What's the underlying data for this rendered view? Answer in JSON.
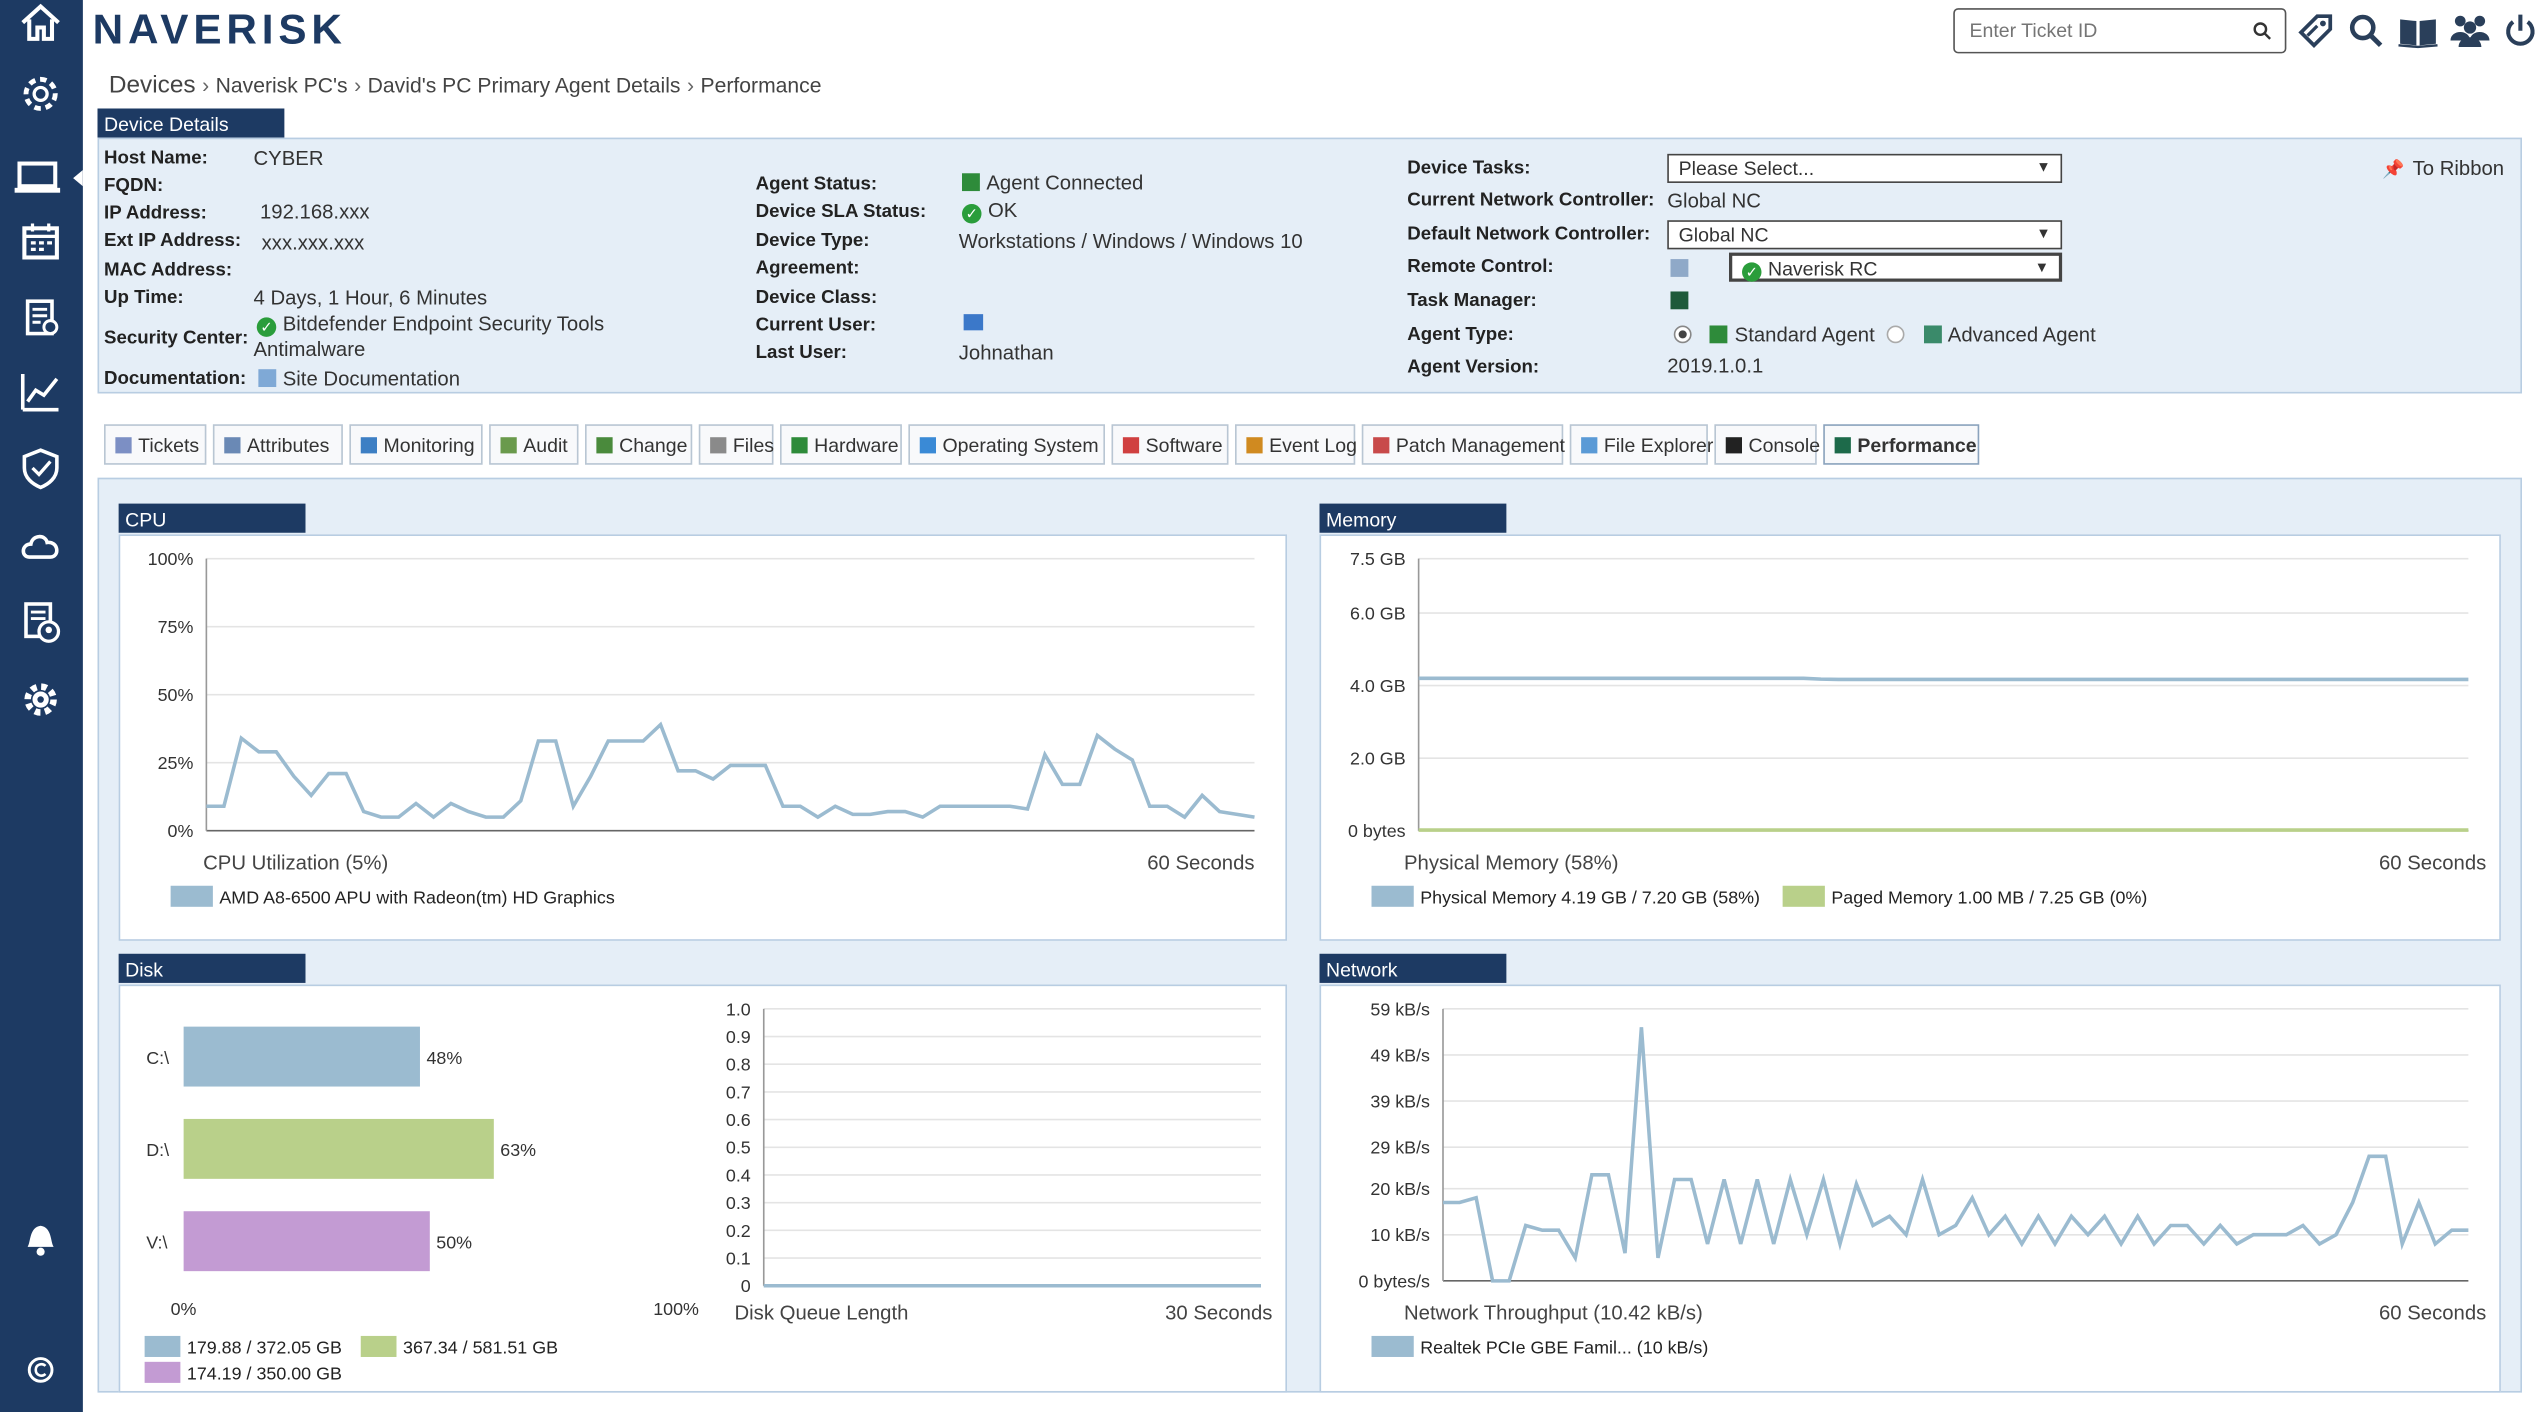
{
  "brand": {
    "logo": "NAVERISK"
  },
  "header": {
    "ticket_placeholder": "Enter Ticket ID"
  },
  "breadcrumb": {
    "root": "Devices",
    "items": [
      "Naverisk PC's",
      "David's PC Primary Agent Details",
      "Performance"
    ]
  },
  "device_details": {
    "title": "Device Details",
    "col1": [
      {
        "label": "Host Name:",
        "value": "CYBER"
      },
      {
        "label": "FQDN:",
        "value": ""
      },
      {
        "label": "IP Address:",
        "value": "192.168.xxx"
      },
      {
        "label": "Ext IP Address:",
        "value": "xxx.xxx.xxx"
      },
      {
        "label": "MAC Address:",
        "value": ""
      },
      {
        "label": "Up Time:",
        "value": "4 Days, 1 Hour, 6 Minutes"
      },
      {
        "label": "Security Center:",
        "value": "Bitdefender Endpoint Security Tools",
        "value2": "Antimalware"
      },
      {
        "label": "Documentation:",
        "value": "Site Documentation"
      }
    ],
    "col2": [
      {
        "label": "Agent Status:",
        "value": "Agent Connected"
      },
      {
        "label": "Device SLA Status:",
        "value": "OK"
      },
      {
        "label": "Device Type:",
        "value": "Workstations / Windows / Windows 10"
      },
      {
        "label": "Agreement:",
        "value": ""
      },
      {
        "label": "Device Class:",
        "value": ""
      },
      {
        "label": "Current User:",
        "value": ""
      },
      {
        "label": "Last User:",
        "value": "Johnathan"
      }
    ],
    "col3": {
      "device_tasks_label": "Device Tasks:",
      "device_tasks_value": "Please Select...",
      "current_nc_label": "Current Network Controller:",
      "current_nc_value": "Global NC",
      "default_nc_label": "Default Network Controller:",
      "default_nc_value": "Global NC",
      "remote_control_label": "Remote Control:",
      "remote_control_value": "Naverisk RC",
      "task_manager_label": "Task Manager:",
      "agent_type_label": "Agent Type:",
      "agent_type_standard": "Standard Agent",
      "agent_type_advanced": "Advanced Agent",
      "agent_version_label": "Agent Version:",
      "agent_version_value": "2019.1.0.1"
    },
    "to_ribbon": "To Ribbon"
  },
  "tabs": [
    {
      "label": "Tickets",
      "color": "#7c8fc4"
    },
    {
      "label": "Attributes",
      "color": "#6a89b5"
    },
    {
      "label": "Monitoring",
      "color": "#3d7fc4"
    },
    {
      "label": "Audit",
      "color": "#6a9a4c"
    },
    {
      "label": "Change",
      "color": "#4a8a3c"
    },
    {
      "label": "Files",
      "color": "#8a8a8a"
    },
    {
      "label": "Hardware",
      "color": "#2e8b3a"
    },
    {
      "label": "Operating System",
      "color": "#3a8ad6"
    },
    {
      "label": "Software",
      "color": "#d04040"
    },
    {
      "label": "Event Log",
      "color": "#d08a20"
    },
    {
      "label": "Patch Management",
      "color": "#c84a4a"
    },
    {
      "label": "File Explorer",
      "color": "#5a9ad6"
    },
    {
      "label": "Console",
      "color": "#222222"
    },
    {
      "label": "Performance",
      "color": "#1d6a4a"
    }
  ],
  "panels": {
    "cpu": "CPU",
    "memory": "Memory",
    "disk": "Disk",
    "network": "Network"
  },
  "chart_data": [
    {
      "type": "line",
      "name": "cpu",
      "ylim": [
        0,
        100
      ],
      "yticks": [
        "100%",
        "75%",
        "50%",
        "25%",
        "0%"
      ],
      "caption_left": "CPU Utilization (5%)",
      "caption_right": "60 Seconds",
      "colors": [
        "#9bbbd0"
      ],
      "series": [
        {
          "name": "AMD A8-6500 APU with Radeon(tm) HD Graphics",
          "values": [
            9,
            9,
            34,
            29,
            29,
            20,
            13,
            21,
            21,
            7,
            5,
            5,
            10,
            5,
            10,
            7,
            5,
            5,
            11,
            33,
            33,
            9,
            20,
            33,
            33,
            33,
            39,
            22,
            22,
            19,
            24,
            24,
            24,
            9,
            9,
            5,
            9,
            6,
            6,
            7,
            7,
            5,
            9,
            9,
            9,
            9,
            9,
            8,
            28,
            17,
            17,
            35,
            30,
            26,
            9,
            9,
            5,
            13,
            7,
            6,
            5
          ]
        }
      ]
    },
    {
      "type": "line",
      "name": "memory",
      "ylim": [
        0,
        7.5
      ],
      "ytick_values": [
        7.5,
        6.0,
        4.0,
        2.0,
        0
      ],
      "yticks": [
        "7.5 GB",
        "6.0 GB",
        "4.0 GB",
        "2.0 GB",
        "0 bytes"
      ],
      "caption_left": "Physical Memory (58%)",
      "caption_right": "60 Seconds",
      "colors": [
        "#9bbbd0",
        "#b9d08a"
      ],
      "series": [
        {
          "name": "Physical Memory 4.19 GB / 7.20 GB  (58%)",
          "values": [
            4.2,
            4.2,
            4.2,
            4.2,
            4.2,
            4.2,
            4.2,
            4.2,
            4.2,
            4.2,
            4.2,
            4.2,
            4.2,
            4.2,
            4.2,
            4.2,
            4.2,
            4.2,
            4.2,
            4.2,
            4.2,
            4.2,
            4.2,
            4.18,
            4.17,
            4.17,
            4.17,
            4.17,
            4.17,
            4.17,
            4.17,
            4.17,
            4.17,
            4.17,
            4.17,
            4.17,
            4.17,
            4.17,
            4.17,
            4.17,
            4.17,
            4.17,
            4.17,
            4.17,
            4.17,
            4.17,
            4.17,
            4.17,
            4.17,
            4.17,
            4.17,
            4.17,
            4.17,
            4.17,
            4.17,
            4.17,
            4.17,
            4.17,
            4.17,
            4.17,
            4.17
          ]
        },
        {
          "name": "Paged Memory 1.00 MB / 7.25 GB  (0%)",
          "values": [
            0.02,
            0.02,
            0.02,
            0.02,
            0.02,
            0.02,
            0.02,
            0.02,
            0.02,
            0.02,
            0.02,
            0.02,
            0.02,
            0.02,
            0.02,
            0.02,
            0.02,
            0.02,
            0.02,
            0.02,
            0.02,
            0.02,
            0.02,
            0.02,
            0.02,
            0.02,
            0.02,
            0.02,
            0.02,
            0.02,
            0.02,
            0.02,
            0.02,
            0.02,
            0.02,
            0.02,
            0.02,
            0.02,
            0.02,
            0.02,
            0.02,
            0.02,
            0.02,
            0.02,
            0.02,
            0.02,
            0.02,
            0.02,
            0.02,
            0.02,
            0.02,
            0.02,
            0.02,
            0.02,
            0.02,
            0.02,
            0.02,
            0.02,
            0.02,
            0.02,
            0.02
          ]
        }
      ]
    },
    {
      "type": "bar",
      "name": "disk-usage",
      "categories": [
        "C:\\",
        "D:\\",
        "V:\\"
      ],
      "values": [
        48,
        63,
        50
      ],
      "value_labels": [
        "48%",
        "63%",
        "50%"
      ],
      "xlim": [
        0,
        100
      ],
      "xticks": [
        "0%",
        "100%"
      ],
      "colors": [
        "#9bbbd0",
        "#b9d08a",
        "#c39bd3"
      ],
      "legend": [
        "179.88 / 372.05 GB",
        "367.34 / 581.51 GB",
        "174.19 / 350.00 GB"
      ]
    },
    {
      "type": "line",
      "name": "disk-queue",
      "ylim": [
        0,
        1
      ],
      "yticks": [
        "1.0",
        "0.9",
        "0.8",
        "0.7",
        "0.6",
        "0.5",
        "0.4",
        "0.3",
        "0.2",
        "0.1",
        "0"
      ],
      "caption_left": "Disk Queue Length",
      "caption_right": "30 Seconds",
      "colors": [
        "#9bbbd0"
      ],
      "series": [
        {
          "values": [
            0,
            0,
            0,
            0,
            0,
            0,
            0,
            0,
            0,
            0,
            0,
            0,
            0,
            0,
            0,
            0,
            0,
            0,
            0,
            0,
            0,
            0,
            0,
            0,
            0,
            0,
            0,
            0,
            0,
            0,
            0
          ]
        }
      ]
    },
    {
      "type": "line",
      "name": "network",
      "ylim": [
        0,
        59
      ],
      "ytick_values": [
        59,
        49,
        39,
        29,
        20,
        10,
        0
      ],
      "yticks": [
        "59 kB/s",
        "49 kB/s",
        "39 kB/s",
        "29 kB/s",
        "20 kB/s",
        "10 kB/s",
        "0 bytes/s"
      ],
      "caption_left": "Network Throughput (10.42 kB/s)",
      "caption_right": "60 Seconds",
      "colors": [
        "#9bbbd0"
      ],
      "series": [
        {
          "name": "Realtek PCIe GBE Famil... (10 kB/s)",
          "values": [
            17,
            17,
            18,
            0,
            0,
            12,
            11,
            11,
            5,
            23,
            23,
            6,
            55,
            5,
            22,
            22,
            8,
            22,
            8,
            22,
            8,
            22,
            10,
            22,
            8,
            21,
            12,
            14,
            10,
            22,
            10,
            12,
            18,
            10,
            14,
            8,
            14,
            8,
            14,
            10,
            14,
            8,
            14,
            8,
            12,
            12,
            8,
            12,
            8,
            10,
            10,
            10,
            12,
            8,
            10,
            17,
            27,
            27,
            8,
            17,
            8,
            11,
            11
          ]
        }
      ]
    }
  ]
}
